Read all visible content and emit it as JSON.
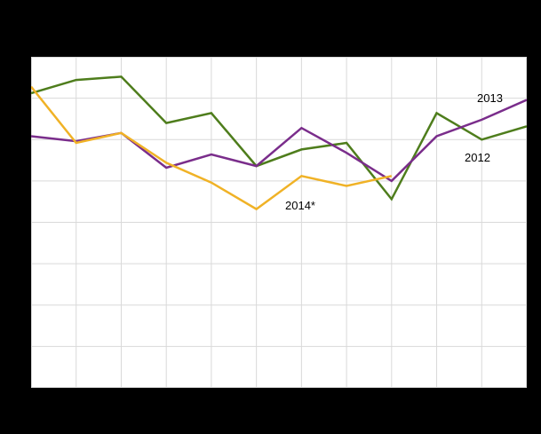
{
  "colors": {
    "page_background": "#000000",
    "plot_background": "#ffffff",
    "gridline": "#d9d9d9"
  },
  "chart_data": {
    "type": "line",
    "x_count": 12,
    "ylim": [
      0,
      100
    ],
    "grid": {
      "on": true,
      "x_divisions": 11,
      "y_divisions": 8
    },
    "legend_position": "inline-annotations",
    "series": [
      {
        "name": "2012",
        "color": "#4e7d1c",
        "values": [
          89,
          93,
          94,
          80,
          83,
          67,
          72,
          74,
          57,
          83,
          75,
          79
        ]
      },
      {
        "name": "2013",
        "color": "#7a2d8b",
        "values": [
          76,
          74.5,
          77,
          66.5,
          70.5,
          67,
          78.5,
          71,
          62.5,
          76,
          81,
          87
        ]
      },
      {
        "name": "2014*",
        "color": "#f0b226",
        "values": [
          91,
          74,
          77,
          68,
          62,
          54,
          64,
          61,
          64
        ]
      }
    ],
    "annotations": [
      {
        "text": "2013"
      },
      {
        "text": "2012"
      },
      {
        "text": "2014*"
      }
    ]
  }
}
